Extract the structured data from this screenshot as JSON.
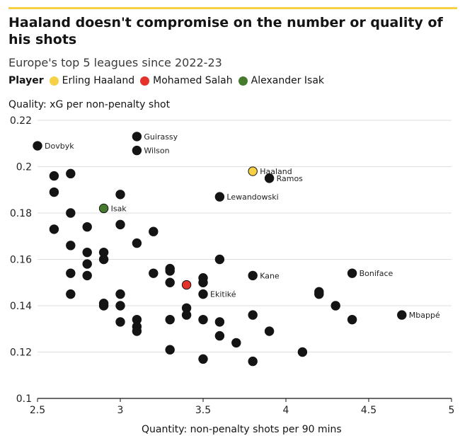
{
  "header": {
    "title": "Haaland doesn't compromise on the number or quality of his shots",
    "subtitle": "Europe's top 5 leagues since 2022-23"
  },
  "legend": {
    "title": "Player",
    "items": [
      {
        "label": "Erling Haaland",
        "color": "#f6d145"
      },
      {
        "label": "Mohamed Salah",
        "color": "#e4332b"
      },
      {
        "label": "Alexander Isak",
        "color": "#467a2d"
      }
    ]
  },
  "colors": {
    "default_point": "#141414",
    "axis": "#141414",
    "grid": "#dedede",
    "accent_rule": "#f6d145"
  },
  "chart_data": {
    "type": "scatter",
    "title": "Haaland doesn't compromise on the number or quality of his shots",
    "subtitle": "Europe's top 5 leagues since 2022-23",
    "xlabel": "Quantity: non-penalty shots per 90 mins",
    "ylabel": "Quality: xG per non-penalty shot",
    "xlim": [
      2.5,
      5
    ],
    "ylim": [
      0.1,
      0.22
    ],
    "xticks": [
      "2.5",
      "3",
      "3.5",
      "4",
      "4.5",
      "5"
    ],
    "yticks": [
      "0.1",
      "0.12",
      "0.14",
      "0.16",
      "0.18",
      "0.2",
      "0.22"
    ],
    "grid": "horizontal",
    "legend_position": "top",
    "points": [
      {
        "x": 2.5,
        "y": 0.209,
        "label": "Dovbyk"
      },
      {
        "x": 3.1,
        "y": 0.213,
        "label": "Guirassy"
      },
      {
        "x": 3.1,
        "y": 0.207,
        "label": "Wilson"
      },
      {
        "x": 3.8,
        "y": 0.198,
        "label": "Haaland",
        "color": "#f6d145"
      },
      {
        "x": 3.9,
        "y": 0.195,
        "label": "Ramos"
      },
      {
        "x": 3.6,
        "y": 0.187,
        "label": "Lewandowski"
      },
      {
        "x": 2.9,
        "y": 0.182,
        "label": "Isak",
        "color": "#467a2d"
      },
      {
        "x": 3.8,
        "y": 0.153,
        "label": "Kane"
      },
      {
        "x": 4.4,
        "y": 0.154,
        "label": "Boniface"
      },
      {
        "x": 3.4,
        "y": 0.149,
        "color": "#e4332b"
      },
      {
        "x": 3.5,
        "y": 0.145,
        "label": "Ekitiké"
      },
      {
        "x": 4.7,
        "y": 0.136,
        "label": "Mbappé"
      },
      {
        "x": 2.6,
        "y": 0.196
      },
      {
        "x": 2.7,
        "y": 0.197
      },
      {
        "x": 2.6,
        "y": 0.189
      },
      {
        "x": 3.0,
        "y": 0.188
      },
      {
        "x": 2.7,
        "y": 0.18
      },
      {
        "x": 2.8,
        "y": 0.174
      },
      {
        "x": 2.6,
        "y": 0.173
      },
      {
        "x": 3.0,
        "y": 0.175
      },
      {
        "x": 3.2,
        "y": 0.172
      },
      {
        "x": 3.1,
        "y": 0.167
      },
      {
        "x": 2.7,
        "y": 0.166
      },
      {
        "x": 2.8,
        "y": 0.163
      },
      {
        "x": 2.9,
        "y": 0.163
      },
      {
        "x": 2.9,
        "y": 0.16
      },
      {
        "x": 2.8,
        "y": 0.158
      },
      {
        "x": 3.6,
        "y": 0.16
      },
      {
        "x": 3.3,
        "y": 0.156
      },
      {
        "x": 3.3,
        "y": 0.155
      },
      {
        "x": 2.7,
        "y": 0.154
      },
      {
        "x": 3.2,
        "y": 0.154
      },
      {
        "x": 2.8,
        "y": 0.153
      },
      {
        "x": 3.5,
        "y": 0.152
      },
      {
        "x": 3.3,
        "y": 0.15
      },
      {
        "x": 3.5,
        "y": 0.15
      },
      {
        "x": 2.7,
        "y": 0.145
      },
      {
        "x": 3.0,
        "y": 0.145
      },
      {
        "x": 4.2,
        "y": 0.146
      },
      {
        "x": 4.2,
        "y": 0.145
      },
      {
        "x": 2.9,
        "y": 0.141
      },
      {
        "x": 2.9,
        "y": 0.14
      },
      {
        "x": 3.0,
        "y": 0.14
      },
      {
        "x": 4.3,
        "y": 0.14
      },
      {
        "x": 3.4,
        "y": 0.139
      },
      {
        "x": 3.4,
        "y": 0.136
      },
      {
        "x": 3.8,
        "y": 0.136
      },
      {
        "x": 3.1,
        "y": 0.134
      },
      {
        "x": 3.3,
        "y": 0.134
      },
      {
        "x": 3.5,
        "y": 0.134
      },
      {
        "x": 4.4,
        "y": 0.134
      },
      {
        "x": 3.0,
        "y": 0.133
      },
      {
        "x": 3.6,
        "y": 0.133
      },
      {
        "x": 3.1,
        "y": 0.131
      },
      {
        "x": 3.1,
        "y": 0.129
      },
      {
        "x": 3.9,
        "y": 0.129
      },
      {
        "x": 3.6,
        "y": 0.127
      },
      {
        "x": 3.7,
        "y": 0.124
      },
      {
        "x": 3.3,
        "y": 0.121
      },
      {
        "x": 4.1,
        "y": 0.12
      },
      {
        "x": 3.5,
        "y": 0.117
      },
      {
        "x": 3.8,
        "y": 0.116
      }
    ]
  }
}
